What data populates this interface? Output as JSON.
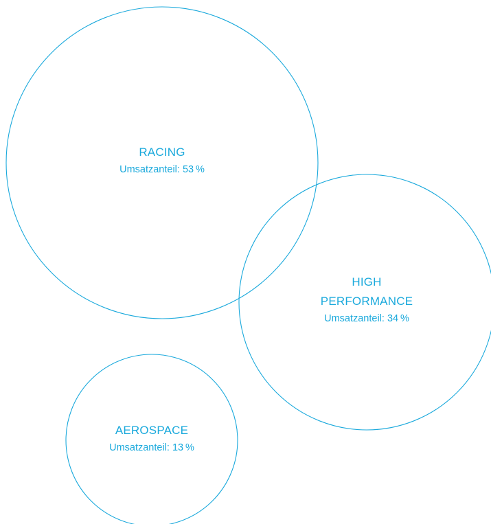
{
  "colors": {
    "accent": "#1aa9dc",
    "background": "#ffffff"
  },
  "chart_data": {
    "type": "bubble",
    "value_label": "Umsatzanteil",
    "unit": "%",
    "series": [
      {
        "name_lines": [
          "RACING"
        ],
        "value": 53
      },
      {
        "name_lines": [
          "HIGH",
          "PERFORMANCE"
        ],
        "value": 34
      },
      {
        "name_lines": [
          "AEROSPACE"
        ],
        "value": 13
      }
    ]
  }
}
